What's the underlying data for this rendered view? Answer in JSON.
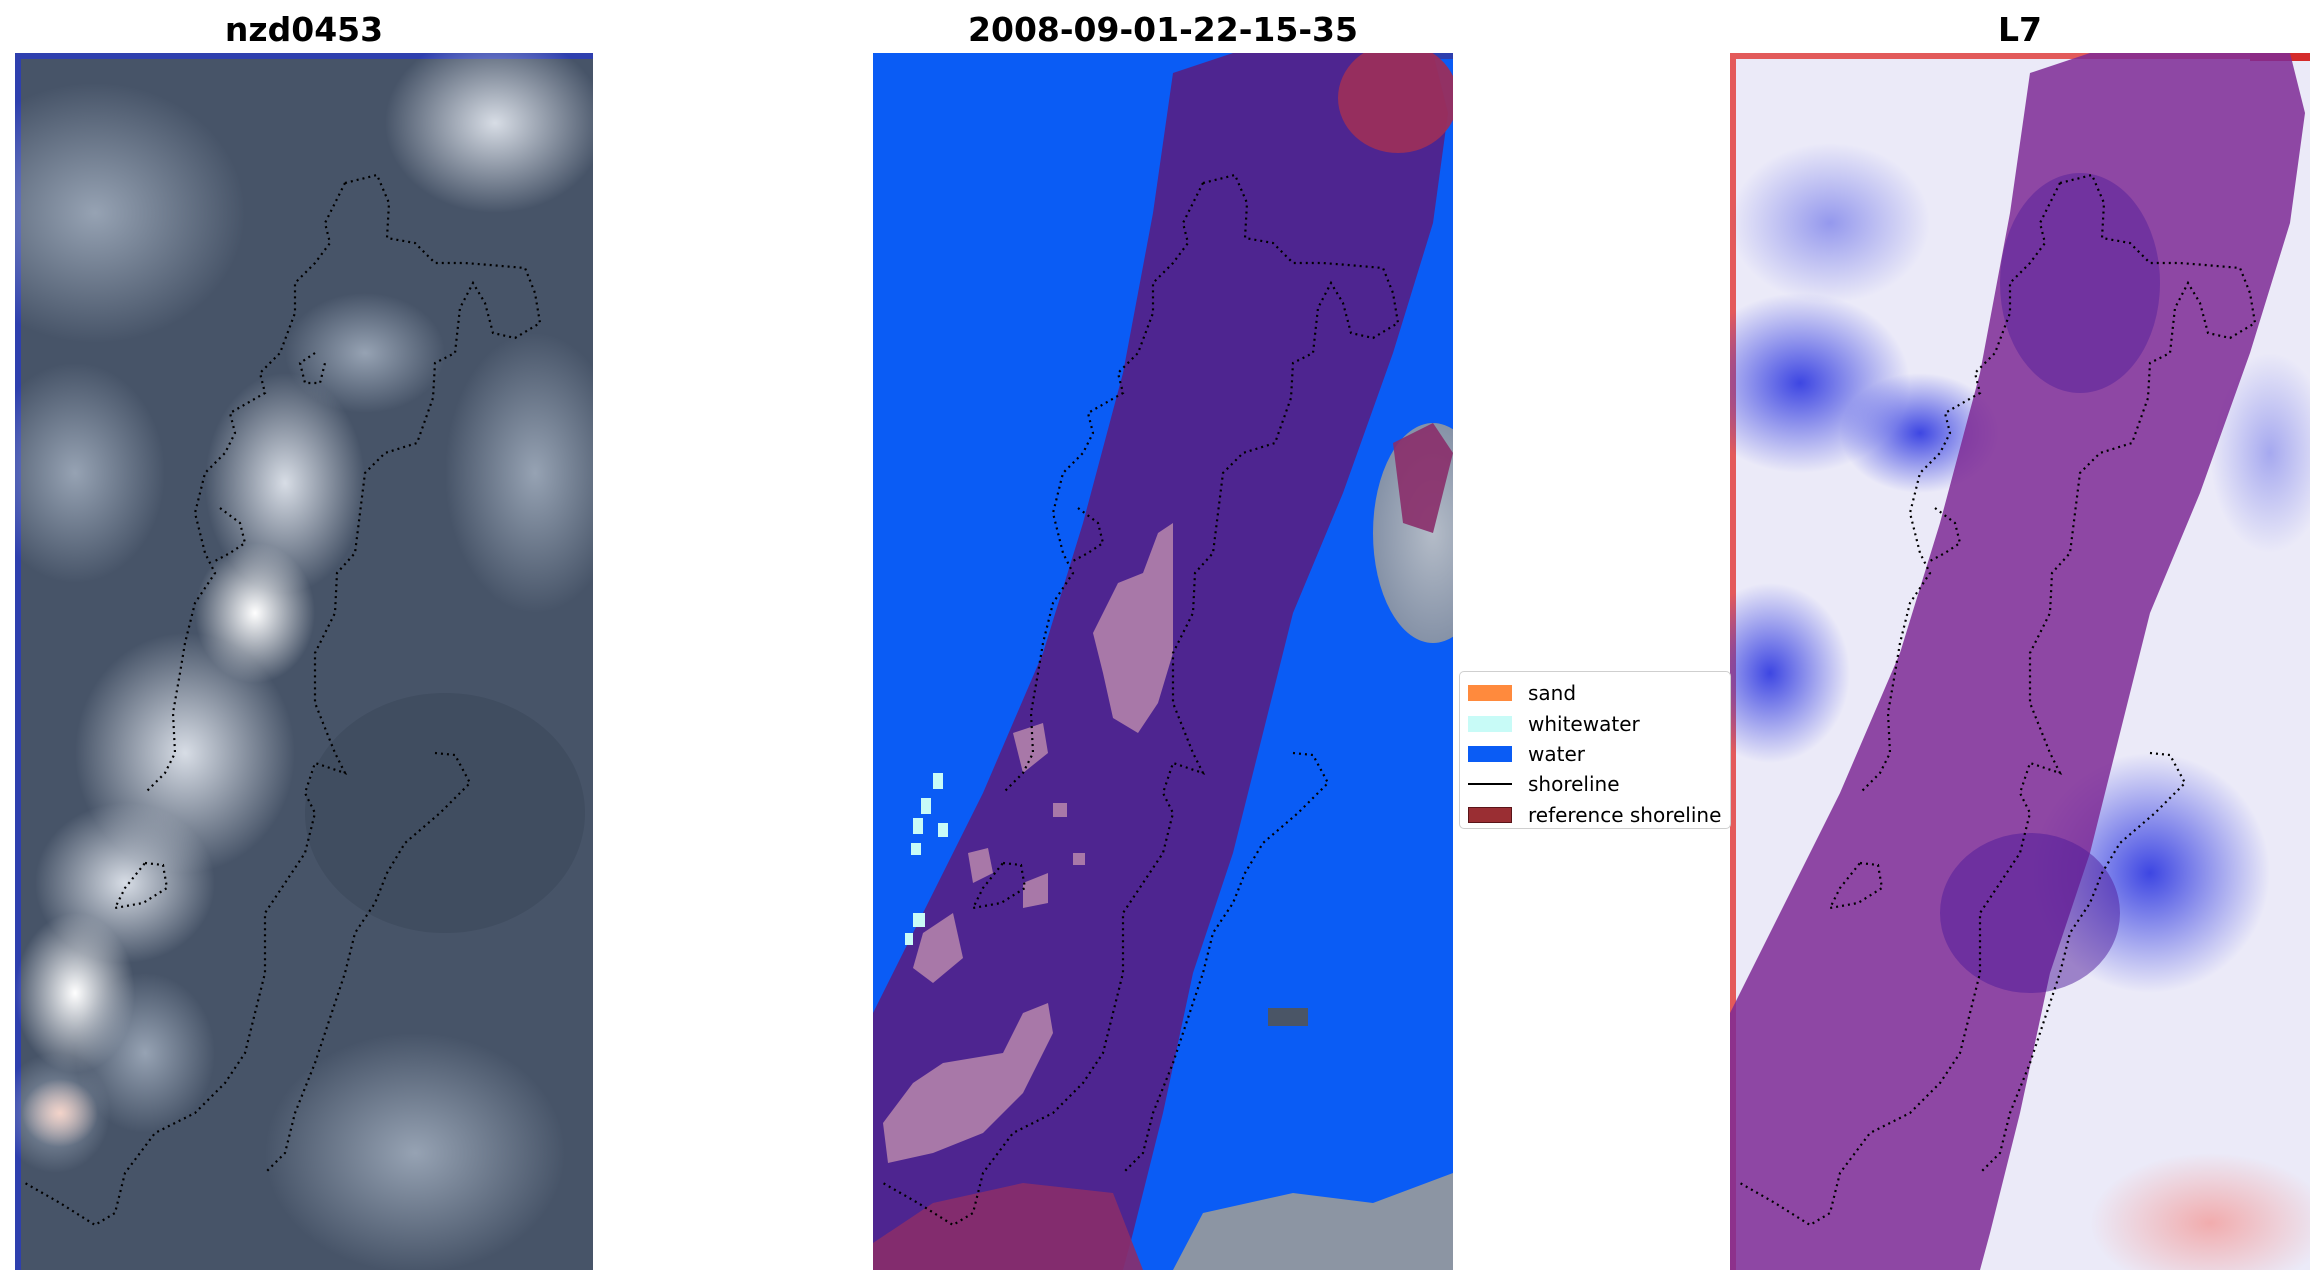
{
  "panels": [
    {
      "title": "nzd0453"
    },
    {
      "title": "2008-09-01-22-15-35"
    },
    {
      "title": "L7"
    }
  ],
  "legend": {
    "items": [
      {
        "label": "sand",
        "color": "#ff8a3d",
        "kind": "patch"
      },
      {
        "label": "whitewater",
        "color": "#c8fbf7",
        "kind": "patch"
      },
      {
        "label": "water",
        "color": "#0a5cf5",
        "kind": "patch"
      },
      {
        "label": "shoreline",
        "color": "#000000",
        "kind": "line"
      },
      {
        "label": "reference shoreline",
        "color": "#9a2e33",
        "kind": "patch"
      }
    ]
  },
  "colors": {
    "water": "#0a5cf5",
    "buffer": "#4e2590",
    "sand_overlay": "#a878a8",
    "whitewater": "#c8fbf7",
    "reference_shoreline": "#9a2e33",
    "cloud_gray": "#8f97a3",
    "rgb_dark": "#3e4b5e"
  }
}
